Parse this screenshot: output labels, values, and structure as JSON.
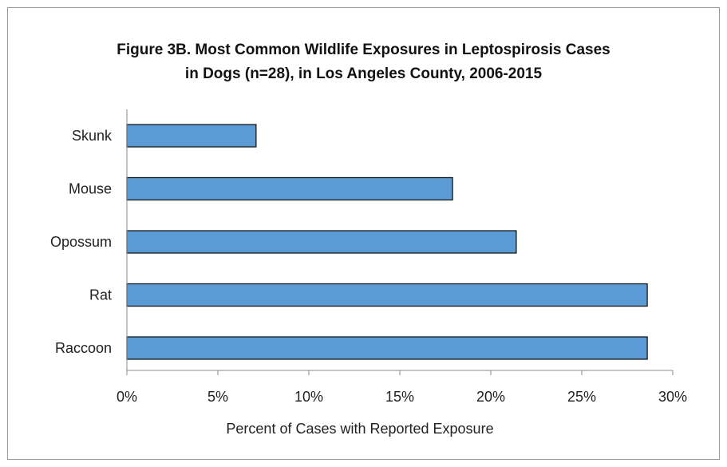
{
  "chart_data": {
    "type": "bar",
    "orientation": "horizontal",
    "title_lines": [
      "Figure 3B. Most Common Wildlife Exposures in Leptospirosis Cases",
      "in Dogs (n=28),  in Los Angeles County, 2006-2015"
    ],
    "categories": [
      "Skunk",
      "Mouse",
      "Opossum",
      "Rat",
      "Raccoon"
    ],
    "values": [
      7.1,
      17.9,
      21.4,
      28.6,
      28.6
    ],
    "xlabel": "Percent of Cases with Reported Exposure",
    "ylabel": "",
    "xlim": [
      0,
      30
    ],
    "xticks": [
      0,
      5,
      10,
      15,
      20,
      25,
      30
    ],
    "xtick_labels": [
      "0%",
      "5%",
      "10%",
      "15%",
      "20%",
      "25%",
      "30%"
    ],
    "grid": false,
    "bar_color": "#5b9bd5",
    "bar_edge_color": "#1a1a1a"
  }
}
